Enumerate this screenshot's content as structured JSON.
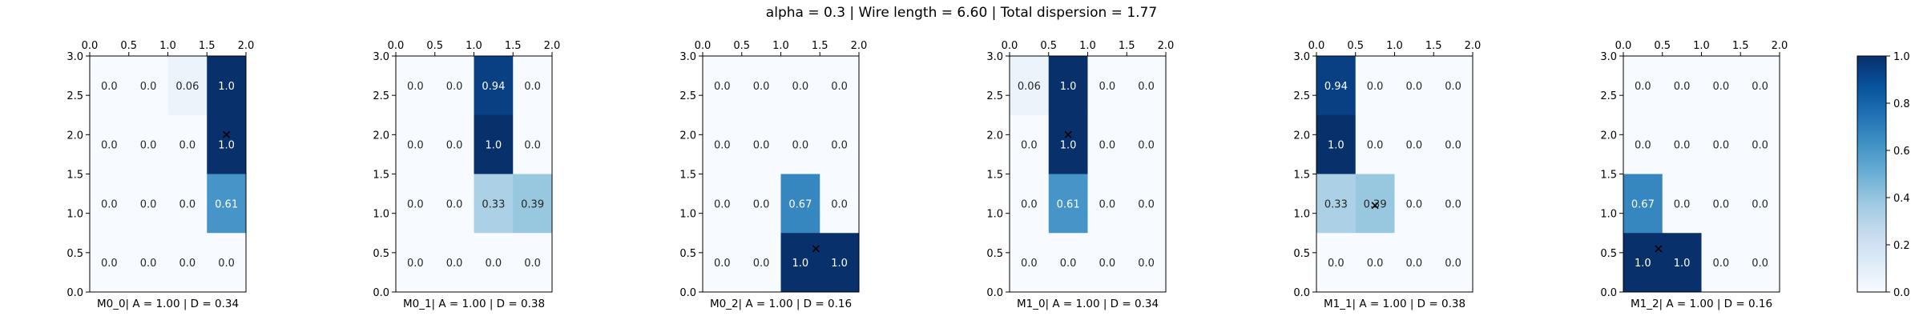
{
  "chart_data": {
    "type": "heatmap",
    "title": "alpha = 0.3 | Wire length = 6.60 | Total dispersion = 1.77",
    "colormap": "Blues",
    "value_range": [
      0.0,
      1.0
    ],
    "colorbar_ticks": [
      "0.0",
      "0.2",
      "0.4",
      "0.6",
      "0.8",
      "1.0"
    ],
    "x_ticks": [
      "0.0",
      "0.5",
      "1.0",
      "1.5",
      "2.0"
    ],
    "y_ticks": [
      "0.0",
      "0.5",
      "1.0",
      "1.5",
      "2.0",
      "2.5",
      "3.0"
    ],
    "x_axis_position": "top",
    "xlim": [
      0,
      2
    ],
    "ylim": [
      0,
      3
    ],
    "grid": {
      "rows": 4,
      "cols": 4
    },
    "panels": [
      {
        "caption": "M0_0| A = 1.00 | D = 0.34",
        "values": [
          [
            0.0,
            0.0,
            0.06,
            1.0
          ],
          [
            0.0,
            0.0,
            0.0,
            1.0
          ],
          [
            0.0,
            0.0,
            0.0,
            0.61
          ],
          [
            0.0,
            0.0,
            0.0,
            0.0
          ]
        ],
        "labels": [
          [
            "0.0",
            "0.0",
            "0.06",
            "1.0"
          ],
          [
            "0.0",
            "0.0",
            "0.0",
            "1.0"
          ],
          [
            "0.0",
            "0.0",
            "0.0",
            "0.61"
          ],
          [
            "0.0",
            "0.0",
            "0.0",
            "0.0"
          ]
        ],
        "marker": {
          "x": 1.75,
          "y": 2.0
        }
      },
      {
        "caption": "M0_1| A = 1.00 | D = 0.38",
        "values": [
          [
            0.0,
            0.0,
            0.94,
            0.0
          ],
          [
            0.0,
            0.0,
            1.0,
            0.0
          ],
          [
            0.0,
            0.0,
            0.33,
            0.39
          ],
          [
            0.0,
            0.0,
            0.0,
            0.0
          ]
        ],
        "labels": [
          [
            "0.0",
            "0.0",
            "0.94",
            "0.0"
          ],
          [
            "0.0",
            "0.0",
            "1.0",
            "0.0"
          ],
          [
            "0.0",
            "0.0",
            "0.33",
            "0.39"
          ],
          [
            "0.0",
            "0.0",
            "0.0",
            "0.0"
          ]
        ],
        "marker": null
      },
      {
        "caption": "M0_2| A = 1.00 | D = 0.16",
        "values": [
          [
            0.0,
            0.0,
            0.0,
            0.0
          ],
          [
            0.0,
            0.0,
            0.0,
            0.0
          ],
          [
            0.0,
            0.0,
            0.67,
            0.0
          ],
          [
            0.0,
            0.0,
            1.0,
            1.0
          ]
        ],
        "labels": [
          [
            "0.0",
            "0.0",
            "0.0",
            "0.0"
          ],
          [
            "0.0",
            "0.0",
            "0.0",
            "0.0"
          ],
          [
            "0.0",
            "0.0",
            "0.67",
            "0.0"
          ],
          [
            "0.0",
            "0.0",
            "1.0",
            "1.0"
          ]
        ],
        "marker": {
          "x": 1.45,
          "y": 0.55
        }
      },
      {
        "caption": "M1_0| A = 1.00 | D = 0.34",
        "values": [
          [
            0.06,
            1.0,
            0.0,
            0.0
          ],
          [
            0.0,
            1.0,
            0.0,
            0.0
          ],
          [
            0.0,
            0.61,
            0.0,
            0.0
          ],
          [
            0.0,
            0.0,
            0.0,
            0.0
          ]
        ],
        "labels": [
          [
            "0.06",
            "1.0",
            "0.0",
            "0.0"
          ],
          [
            "0.0",
            "1.0",
            "0.0",
            "0.0"
          ],
          [
            "0.0",
            "0.61",
            "0.0",
            "0.0"
          ],
          [
            "0.0",
            "0.0",
            "0.0",
            "0.0"
          ]
        ],
        "marker": {
          "x": 0.75,
          "y": 2.0
        }
      },
      {
        "caption": "M1_1| A = 1.00 | D = 0.38",
        "values": [
          [
            0.94,
            0.0,
            0.0,
            0.0
          ],
          [
            1.0,
            0.0,
            0.0,
            0.0
          ],
          [
            0.33,
            0.39,
            0.0,
            0.0
          ],
          [
            0.0,
            0.0,
            0.0,
            0.0
          ]
        ],
        "labels": [
          [
            "0.94",
            "0.0",
            "0.0",
            "0.0"
          ],
          [
            "1.0",
            "0.0",
            "0.0",
            "0.0"
          ],
          [
            "0.33",
            "0.39",
            "0.0",
            "0.0"
          ],
          [
            "0.0",
            "0.0",
            "0.0",
            "0.0"
          ]
        ],
        "marker": {
          "x": 0.75,
          "y": 1.1
        }
      },
      {
        "caption": "M1_2| A = 1.00 | D = 0.16",
        "values": [
          [
            0.0,
            0.0,
            0.0,
            0.0
          ],
          [
            0.0,
            0.0,
            0.0,
            0.0
          ],
          [
            0.67,
            0.0,
            0.0,
            0.0
          ],
          [
            1.0,
            1.0,
            0.0,
            0.0
          ]
        ],
        "labels": [
          [
            "0.0",
            "0.0",
            "0.0",
            "0.0"
          ],
          [
            "0.0",
            "0.0",
            "0.0",
            "0.0"
          ],
          [
            "0.67",
            "0.0",
            "0.0",
            "0.0"
          ],
          [
            "1.0",
            "1.0",
            "0.0",
            "0.0"
          ]
        ],
        "marker": {
          "x": 0.45,
          "y": 0.55
        }
      }
    ]
  }
}
